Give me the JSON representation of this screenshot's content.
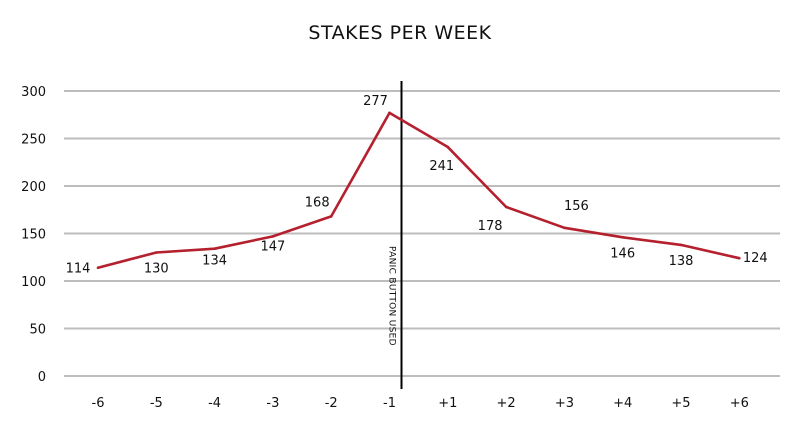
{
  "chart_data": {
    "type": "line",
    "title": "STAKES PER WEEK",
    "xlabel": "",
    "ylabel": "",
    "categories": [
      "-6",
      "-5",
      "-4",
      "-3",
      "-2",
      "-1",
      "+1",
      "+2",
      "+3",
      "+4",
      "+5",
      "+6"
    ],
    "series": [
      {
        "values": [
          114,
          130,
          134,
          147,
          168,
          277,
          241,
          178,
          156,
          146,
          138,
          124
        ]
      }
    ],
    "data_labels": [
      "114",
      "130",
      "134",
      "147",
      "168",
      "277",
      "241",
      "178",
      "156",
      "146",
      "138",
      "124"
    ],
    "y_ticks": [
      "0",
      "50",
      "100",
      "150",
      "200",
      "250",
      "300"
    ],
    "ylim": [
      0,
      300
    ],
    "grid": true,
    "line_color": "#b5202e",
    "grid_color": "#bdbdbd",
    "marker_line": {
      "after_category": "-1",
      "label": "PANIC BUTTON USED",
      "color": "#000000"
    }
  }
}
